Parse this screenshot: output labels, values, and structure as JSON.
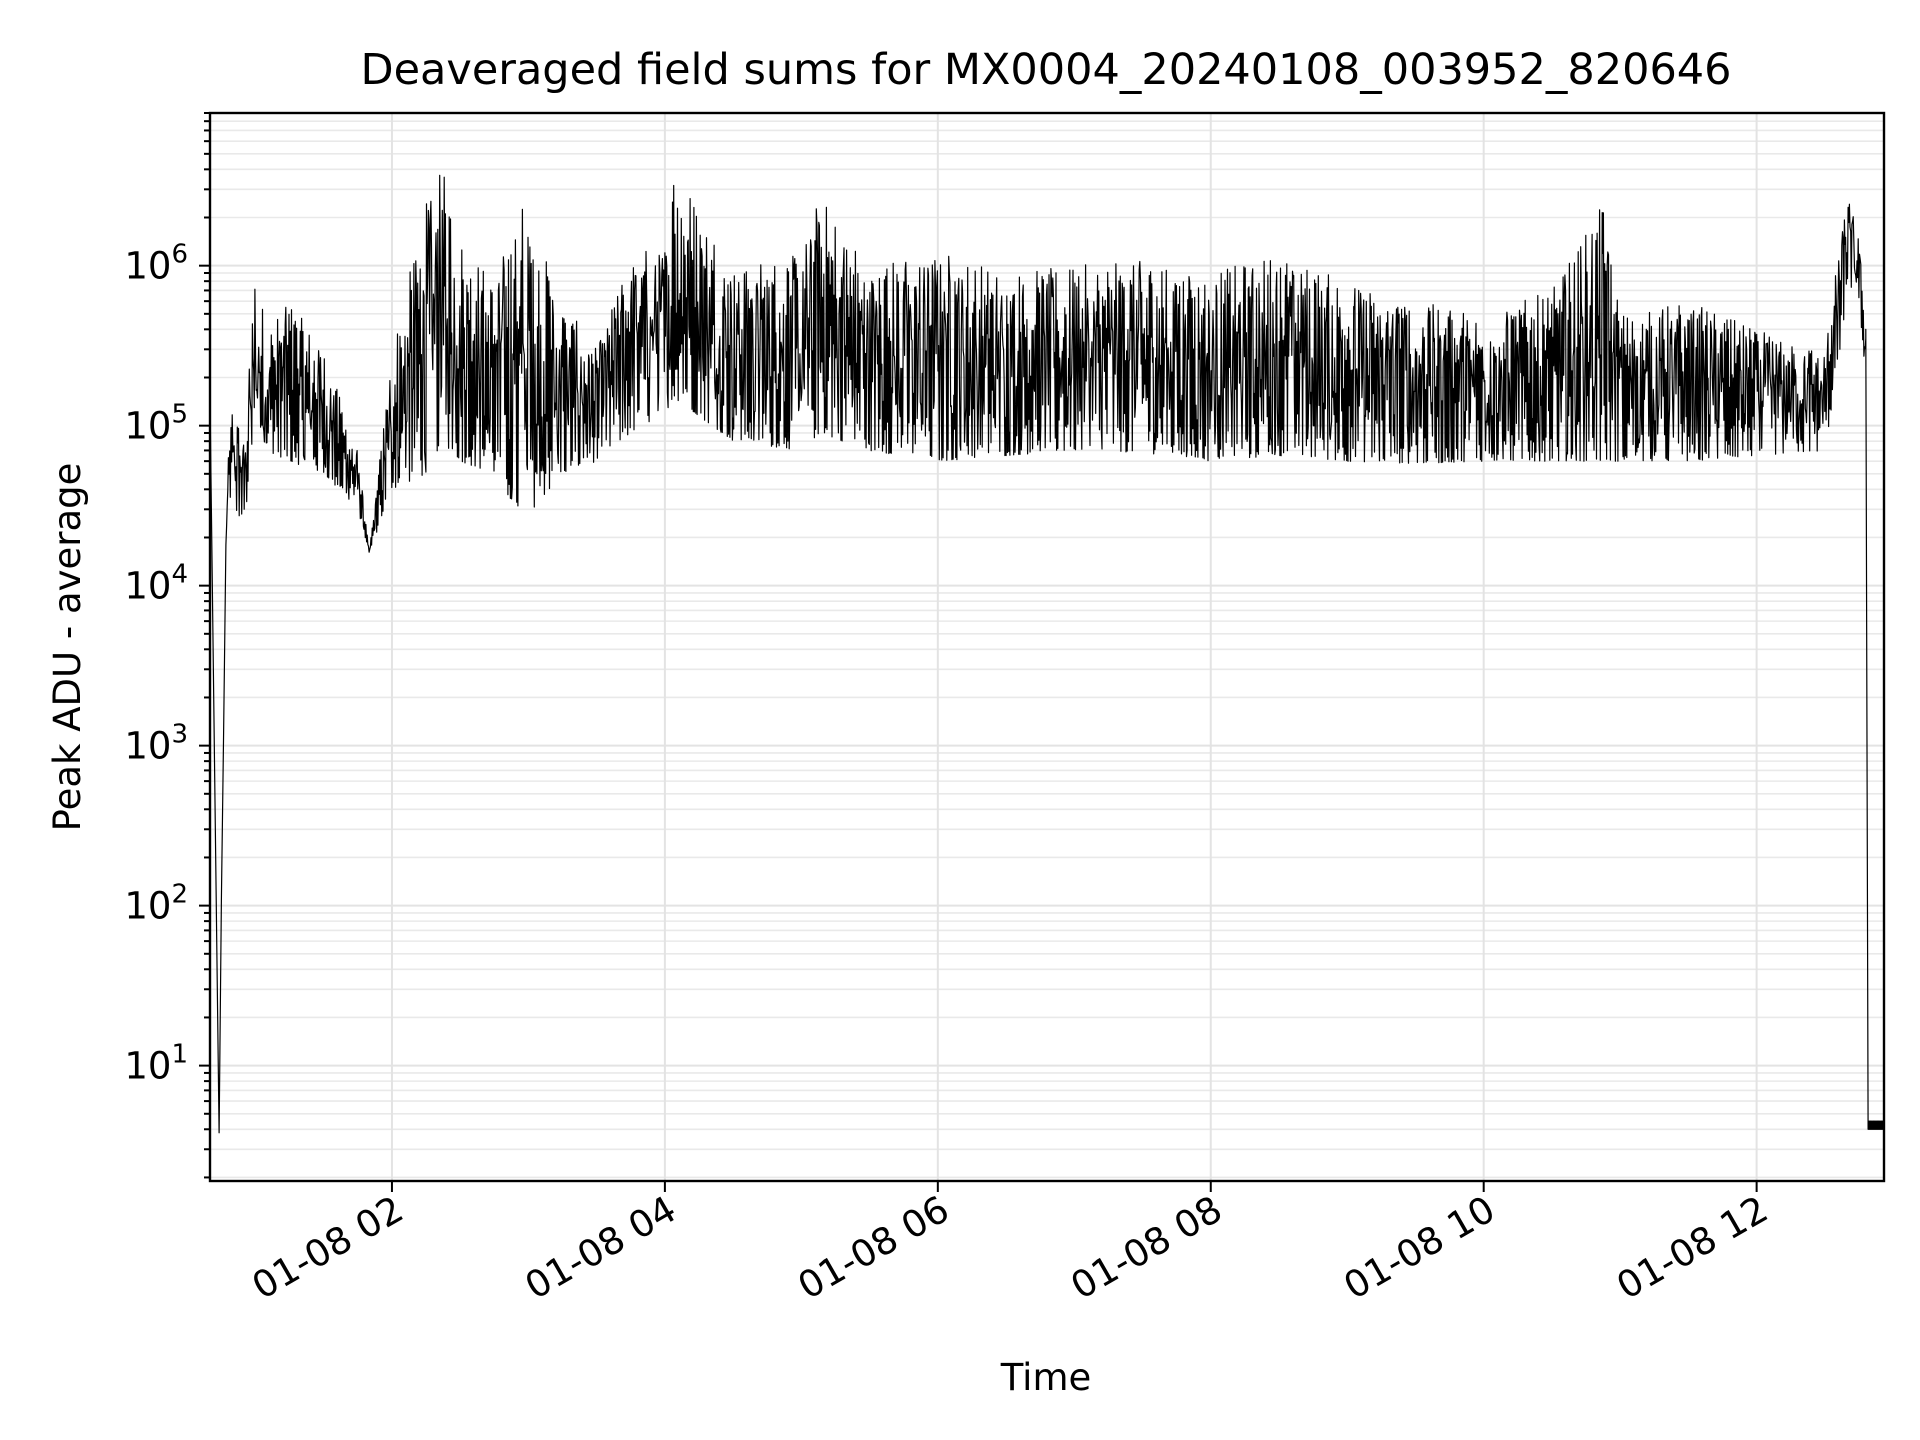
{
  "chart_data": {
    "type": "line",
    "title": "Deaveraged field sums for MX0004_20240108_003952_820646",
    "xlabel": "Time",
    "ylabel": "Peak ADU - average",
    "yscale": "log",
    "grid": true,
    "grid_minor": true,
    "x_ticks": [
      "01-08 02",
      "01-08 04",
      "01-08 06",
      "01-08 08",
      "01-08 10",
      "01-08 12"
    ],
    "y_ticks": [
      {
        "base": "10",
        "exp": "1",
        "value": 10
      },
      {
        "base": "10",
        "exp": "2",
        "value": 100
      },
      {
        "base": "10",
        "exp": "3",
        "value": 1000
      },
      {
        "base": "10",
        "exp": "4",
        "value": 10000
      },
      {
        "base": "10",
        "exp": "5",
        "value": 100000
      },
      {
        "base": "10",
        "exp": "6",
        "value": 1000000
      }
    ],
    "xlim": [
      "2024-01-08 00:40",
      "2024-01-08 12:56"
    ],
    "ylim": [
      1.9,
      9000000
    ],
    "series": [
      {
        "color": "#000000",
        "x": [
          "2024-01-08 00:40",
          "2024-01-08 00:44",
          "2024-01-08 00:45",
          "2024-01-08 00:46",
          "2024-01-08 00:47",
          "2024-01-08 00:48",
          "2024-01-08 00:50",
          "2024-01-08 00:55",
          "2024-01-08 01:00",
          "2024-01-08 01:05",
          "2024-01-08 01:15",
          "2024-01-08 01:30",
          "2024-01-08 01:45",
          "2024-01-08 01:50",
          "2024-01-08 02:00",
          "2024-01-08 02:15",
          "2024-01-08 02:22",
          "2024-01-08 02:30",
          "2024-01-08 02:45",
          "2024-01-08 02:57",
          "2024-01-08 03:15",
          "2024-01-08 03:30",
          "2024-01-08 03:45",
          "2024-01-08 04:00",
          "2024-01-08 04:04",
          "2024-01-08 04:30",
          "2024-01-08 05:00",
          "2024-01-08 05:08",
          "2024-01-08 05:30",
          "2024-01-08 06:00",
          "2024-01-08 06:30",
          "2024-01-08 07:00",
          "2024-01-08 07:30",
          "2024-01-08 08:00",
          "2024-01-08 08:30",
          "2024-01-08 09:00",
          "2024-01-08 09:30",
          "2024-01-08 10:00",
          "2024-01-08 10:30",
          "2024-01-08 10:53",
          "2024-01-08 11:00",
          "2024-01-08 11:30",
          "2024-01-08 12:00",
          "2024-01-08 12:30",
          "2024-01-08 12:37",
          "2024-01-08 12:40",
          "2024-01-08 12:45",
          "2024-01-08 12:48",
          "2024-01-08 12:49",
          "2024-01-08 12:56"
        ],
        "y": [
          150000,
          3.8,
          110,
          1200,
          18000,
          60000,
          150000,
          80000,
          1000000,
          400000,
          600000,
          300000,
          70000,
          16000,
          300000,
          2500000,
          4200000,
          1500000,
          800000,
          2800000,
          600000,
          300000,
          1200000,
          1400000,
          4400000,
          1000000,
          1200000,
          2800000,
          1000000,
          1300000,
          900000,
          1000000,
          1100000,
          900000,
          1200000,
          800000,
          600000,
          500000,
          700000,
          2500000,
          500000,
          600000,
          400000,
          300000,
          1500000,
          2800000,
          1500000,
          400000,
          4,
          4
        ],
        "baseline_y": [
          150000,
          3.8,
          110,
          1200,
          18000,
          40000,
          30000,
          25000,
          80000,
          70000,
          60000,
          50000,
          30000,
          16000,
          40000,
          50000,
          80000,
          60000,
          50000,
          25000,
          50000,
          60000,
          90000,
          120000,
          150000,
          80000,
          70000,
          90000,
          70000,
          60000,
          65000,
          70000,
          68000,
          60000,
          65000,
          60000,
          58000,
          60000,
          60000,
          60000,
          60000,
          60000,
          65000,
          70000,
          300000,
          800000,
          600000,
          200000,
          4,
          4
        ]
      }
    ]
  }
}
